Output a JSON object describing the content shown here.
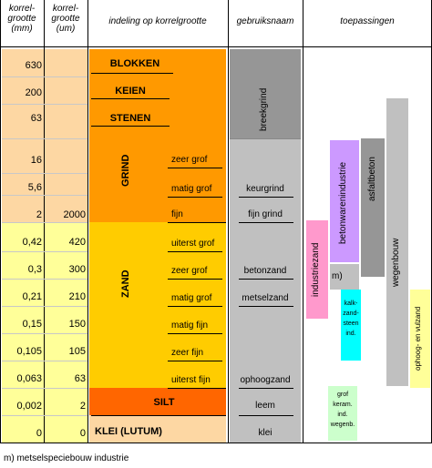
{
  "headers": {
    "korrel_mm": "korrel-\ngrootte\n(mm)",
    "korrel_um": "korrel-\ngrootte\n(um)",
    "indeling": "indeling op korrelgrootte",
    "gebruik": "gebruiksnaam",
    "toepassing": "toepassingen"
  },
  "rows_mm": [
    "630",
    "200",
    "63",
    "16",
    "5,6",
    "2",
    "0,42",
    "0,3",
    "0,21",
    "0,15",
    "0,105",
    "0,063",
    "0,002",
    "0"
  ],
  "rows_um": [
    "",
    "",
    "",
    "",
    "",
    "2000",
    "420",
    "300",
    "210",
    "150",
    "105",
    "63",
    "2",
    "0"
  ],
  "classes": {
    "blokken": "BLOKKEN",
    "keien": "KEIEN",
    "stenen": "STENEN",
    "grind": "GRIND",
    "zand": "ZAND",
    "silt": "SILT",
    "klei": "KLEI (LUTUM)"
  },
  "subclasses": {
    "grind": [
      "zeer grof",
      "matig grof",
      "fijn"
    ],
    "zand": [
      "uiterst grof",
      "zeer grof",
      "matig grof",
      "matig fijn",
      "zeer fijn",
      "uiterst fijn"
    ]
  },
  "gebruik": {
    "breekgrind": "breekgrind",
    "keurgrind": "keurgrind",
    "fijngrind": "fijn grind",
    "betonzand": "betonzand",
    "metselzand": "metselzand",
    "ophoogzand": "ophoogzand",
    "leem": "leem",
    "klei": "klei"
  },
  "toepassingen": {
    "industriezand": "industriezand",
    "betonwaren": "betonwarenindustrie",
    "asfaltbeton": "asfaltbeton",
    "wegenbouw": "wegenbouw",
    "m": "m)",
    "kalkzandsteen": "kalk-\nzand-\nsteen\nind.",
    "grofkeram": "grof\nkeram.\nind.\nwegenb.",
    "ophoog": "ophoog- en vulzand"
  },
  "footnote": "m)  metselspeciebouw industrie",
  "colors": {
    "peach": "#fdd7a3",
    "orange": "#ff9900",
    "lightyellow": "#ffff99",
    "yellow": "#ffcc00",
    "red": "#ff6600",
    "gray": "#c0c0c0",
    "darkgray": "#969696",
    "pink": "#ff99cc",
    "purple": "#cc99ff",
    "cyan": "#00ffff",
    "lightgreen": "#ccffcc",
    "paleyellow": "#ffff99"
  }
}
